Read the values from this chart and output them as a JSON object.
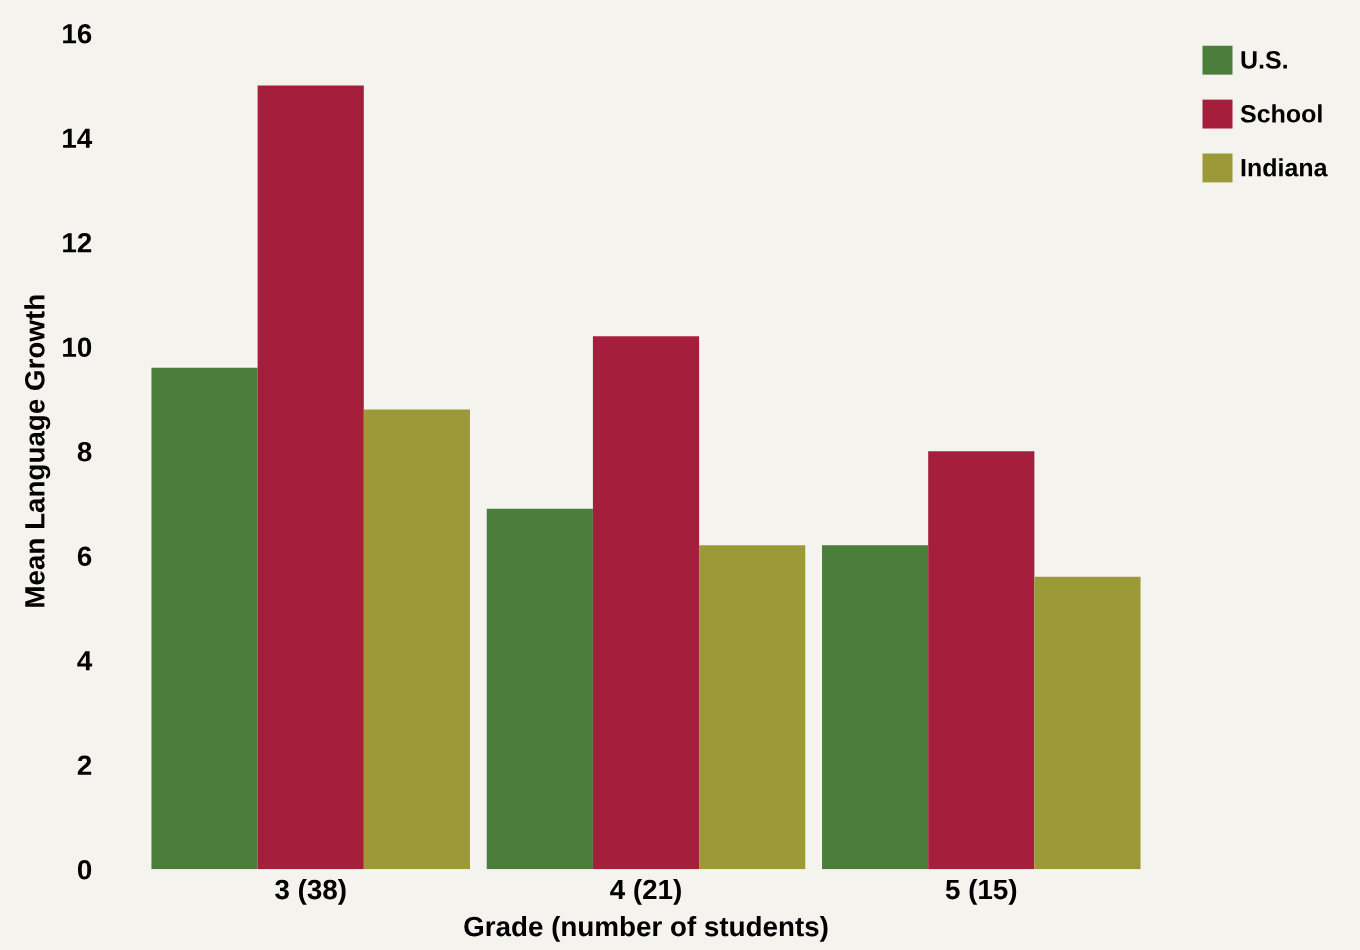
{
  "chart_data": {
    "type": "bar",
    "xlabel": "Grade (number of students)",
    "ylabel": "Mean Language Growth",
    "categories": [
      "3 (38)",
      "4 (21)",
      "5 (15)"
    ],
    "series": [
      {
        "name": "U.S.",
        "color": "#4a7e3a",
        "values": [
          9.6,
          6.9,
          6.2
        ]
      },
      {
        "name": "School",
        "color": "#a51e3c",
        "values": [
          15.0,
          10.2,
          8.0
        ]
      },
      {
        "name": "Indiana",
        "color": "#9c9a38",
        "values": [
          8.8,
          6.2,
          5.6
        ]
      }
    ],
    "ylim": [
      0,
      16
    ],
    "yticks": [
      0,
      2,
      4,
      6,
      8,
      10,
      12,
      14,
      16
    ],
    "grid": false,
    "legend": "top right"
  }
}
